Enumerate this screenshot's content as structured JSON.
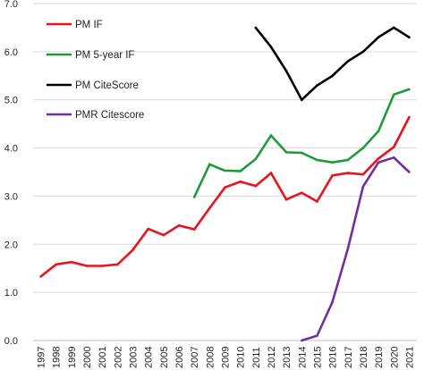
{
  "chart_data": {
    "type": "line",
    "title": "",
    "xlabel": "",
    "ylabel": "",
    "x": [
      "1997",
      "1998",
      "1999",
      "2000",
      "2001",
      "2002",
      "2003",
      "2004",
      "2005",
      "2006",
      "2007",
      "2008",
      "2009",
      "2010",
      "2011",
      "2012",
      "2013",
      "2014",
      "2015",
      "2016",
      "2017",
      "2018",
      "2019",
      "2020",
      "2021"
    ],
    "ylim": [
      0,
      7
    ],
    "yticks": [
      "0.0",
      "1.0",
      "2.0",
      "3.0",
      "4.0",
      "5.0",
      "6.0",
      "7.0"
    ],
    "grid": "horizontal",
    "legend_position": "top-left",
    "series": [
      {
        "name": "PM IF",
        "color": "#e8131b",
        "values": [
          1.33,
          1.58,
          1.63,
          1.55,
          1.55,
          1.58,
          1.88,
          2.32,
          2.19,
          2.39,
          2.31,
          2.75,
          3.18,
          3.3,
          3.21,
          3.48,
          2.93,
          3.07,
          2.89,
          3.43,
          3.48,
          3.45,
          3.78,
          4.02,
          4.64
        ]
      },
      {
        "name": "PM 5-year IF",
        "color": "#1e9a3c",
        "values": [
          null,
          null,
          null,
          null,
          null,
          null,
          null,
          null,
          null,
          null,
          2.98,
          3.66,
          3.53,
          3.52,
          3.77,
          4.26,
          3.91,
          3.9,
          3.75,
          3.7,
          3.75,
          4.0,
          4.35,
          5.11,
          5.22
        ]
      },
      {
        "name": "PM CiteScore",
        "color": "#000000",
        "values": [
          null,
          null,
          null,
          null,
          null,
          null,
          null,
          null,
          null,
          null,
          null,
          null,
          null,
          null,
          6.5,
          6.1,
          5.6,
          5.0,
          5.3,
          5.5,
          5.8,
          6.0,
          6.3,
          6.5,
          6.3
        ]
      },
      {
        "name": "PMR Citescore",
        "color": "#7030a0",
        "values": [
          null,
          null,
          null,
          null,
          null,
          null,
          null,
          null,
          null,
          null,
          null,
          null,
          null,
          null,
          null,
          null,
          null,
          0.0,
          0.1,
          0.8,
          1.9,
          3.2,
          3.7,
          3.8,
          3.5
        ]
      }
    ]
  }
}
